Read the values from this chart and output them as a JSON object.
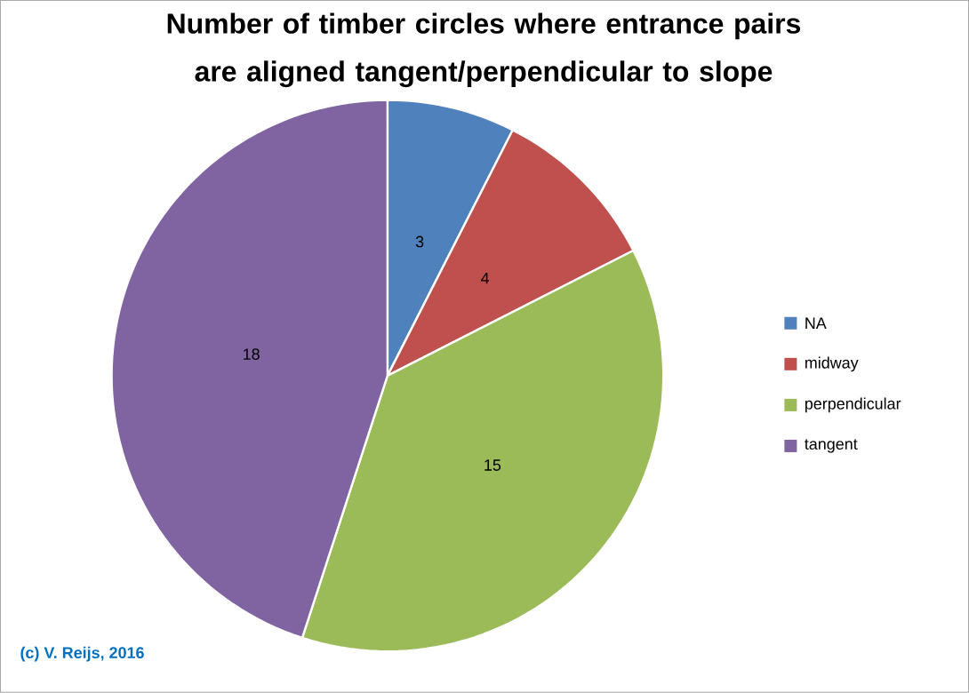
{
  "chart_data": {
    "type": "pie",
    "title": "Number of timber circles where entrance pairs are aligned tangent/perpendicular to slope",
    "categories": [
      "NA",
      "midway",
      "perpendicular",
      "tangent"
    ],
    "values": [
      3,
      4,
      15,
      18
    ],
    "colors": [
      "#4f81bd",
      "#c0504d",
      "#9bbb59",
      "#8064a2"
    ],
    "data_labels": true,
    "legend": "right",
    "annotations": [
      "(c) V. Reijs, 2016"
    ]
  }
}
